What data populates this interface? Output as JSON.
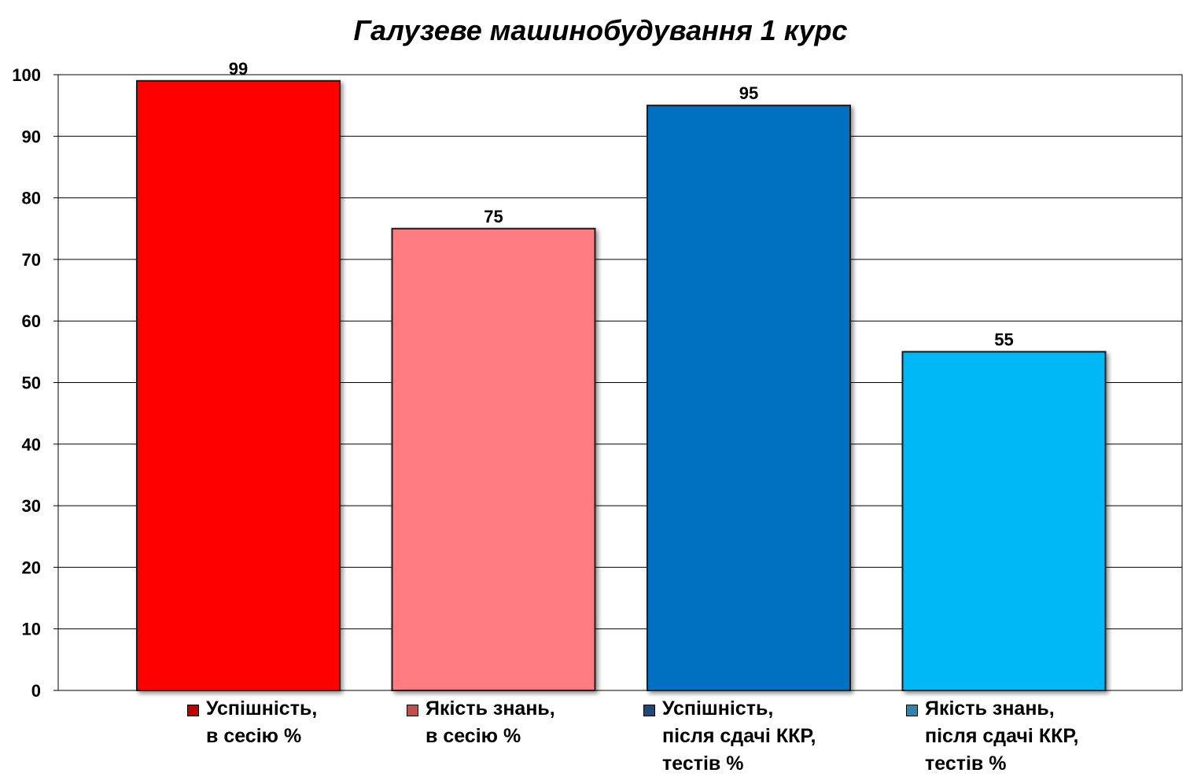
{
  "chart_data": {
    "type": "bar",
    "title": "Галузеве машинобудування 1 курс",
    "xlabel": "",
    "ylabel": "",
    "ylim": [
      0,
      100
    ],
    "yticks": [
      0,
      10,
      20,
      30,
      40,
      50,
      60,
      70,
      80,
      90,
      100
    ],
    "grid": true,
    "legend_position": "bottom",
    "categories": [
      "Успішність,\nв сесію %",
      "Якість знань,\nв сесію %",
      "Успішність,\nпісля сдачі ККР,\nтестів %",
      "Якість знань,\nпісля сдачі ККР,\nтестів %"
    ],
    "values": [
      99,
      75,
      95,
      55
    ],
    "value_labels": [
      "99",
      "75",
      "95",
      "55"
    ],
    "colors": [
      "#ff0000",
      "#ff7c80",
      "#0070c0",
      "#00b8f5"
    ],
    "legend_swatch_colors": [
      "#c00000",
      "#c0504d",
      "#1f497d",
      "#2e86b0"
    ]
  }
}
